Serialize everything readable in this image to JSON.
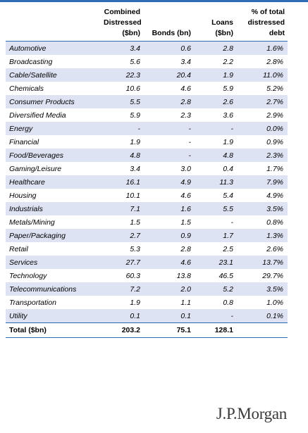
{
  "colors": {
    "accent": "#2e6bb5",
    "row_shade": "#dde3f3",
    "logo": "#3a3a3a"
  },
  "table": {
    "headers": [
      "",
      "Combined Distressed ($bn)",
      "Bonds (bn)",
      "Loans ($bn)",
      "% of total distressed debt"
    ],
    "header_lines": [
      [],
      [
        "Combined",
        "Distressed",
        "($bn)"
      ],
      [
        "Bonds (bn)"
      ],
      [
        "Loans",
        "($bn)"
      ],
      [
        "% of total",
        "distressed",
        "debt"
      ]
    ],
    "rows": [
      [
        "Automotive",
        "3.4",
        "0.6",
        "2.8",
        "1.6%"
      ],
      [
        "Broadcasting",
        "5.6",
        "3.4",
        "2.2",
        "2.8%"
      ],
      [
        "Cable/Satellite",
        "22.3",
        "20.4",
        "1.9",
        "11.0%"
      ],
      [
        "Chemicals",
        "10.6",
        "4.6",
        "5.9",
        "5.2%"
      ],
      [
        "Consumer Products",
        "5.5",
        "2.8",
        "2.6",
        "2.7%"
      ],
      [
        "Diversified Media",
        "5.9",
        "2.3",
        "3.6",
        "2.9%"
      ],
      [
        "Energy",
        "-",
        "-",
        "-",
        "0.0%"
      ],
      [
        "Financial",
        "1.9",
        "-",
        "1.9",
        "0.9%"
      ],
      [
        "Food/Beverages",
        "4.8",
        "-",
        "4.8",
        "2.3%"
      ],
      [
        "Gaming/Leisure",
        "3.4",
        "3.0",
        "0.4",
        "1.7%"
      ],
      [
        "Healthcare",
        "16.1",
        "4.9",
        "11.3",
        "7.9%"
      ],
      [
        "Housing",
        "10.1",
        "4.6",
        "5.4",
        "4.9%"
      ],
      [
        "Industrials",
        "7.1",
        "1.6",
        "5.5",
        "3.5%"
      ],
      [
        "Metals/Mining",
        "1.5",
        "1.5",
        "-",
        "0.8%"
      ],
      [
        "Paper/Packaging",
        "2.7",
        "0.9",
        "1.7",
        "1.3%"
      ],
      [
        "Retail",
        "5.3",
        "2.8",
        "2.5",
        "2.6%"
      ],
      [
        "Services",
        "27.7",
        "4.6",
        "23.1",
        "13.7%"
      ],
      [
        "Technology",
        "60.3",
        "13.8",
        "46.5",
        "29.7%"
      ],
      [
        "Telecommunications",
        "7.2",
        "2.0",
        "5.2",
        "3.5%"
      ],
      [
        "Transportation",
        "1.9",
        "1.1",
        "0.8",
        "1.0%"
      ],
      [
        "Utility",
        "0.1",
        "0.1",
        "-",
        "0.1%"
      ]
    ],
    "total": [
      "Total ($bn)",
      "203.2",
      "75.1",
      "128.1",
      ""
    ]
  },
  "logo": {
    "text": "J.P.Morgan"
  }
}
